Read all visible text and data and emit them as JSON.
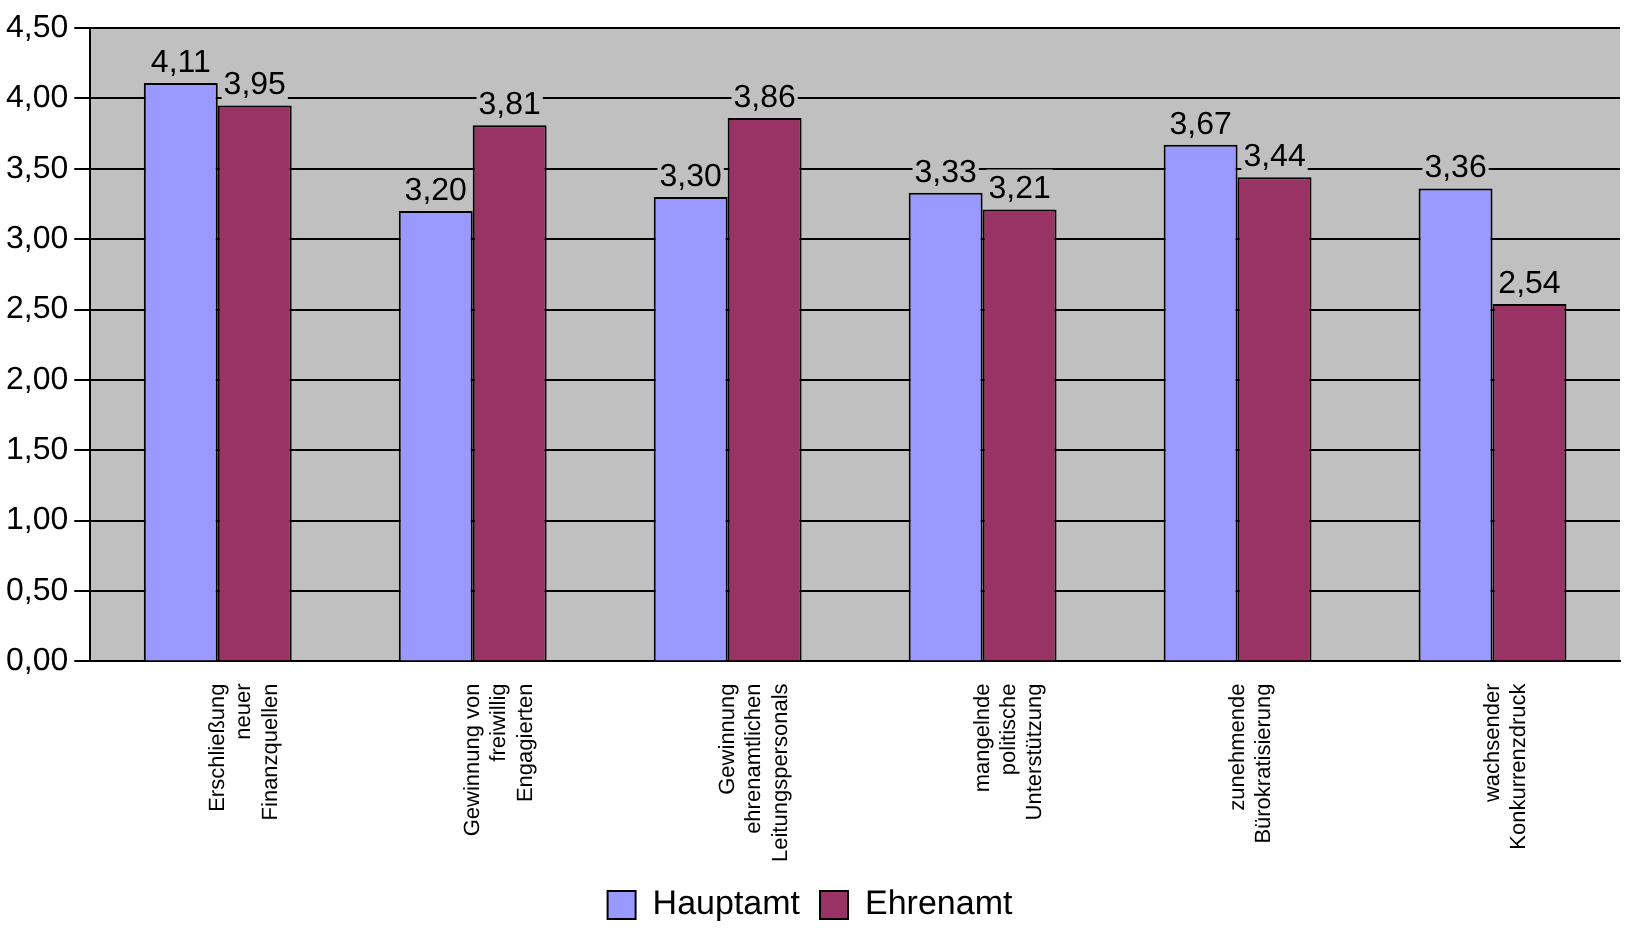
{
  "chart_data": {
    "type": "bar",
    "categories": [
      "Erschließung\nneuer\nFinanzquellen",
      "Gewinnung von\nfreiwillig\nEngagierten",
      "Gewinnung\nehrenamtlichen\nLeitungspersonals",
      "mangelnde\npolitische\nUnterstützung",
      "zunehmende\nBürokratisierung",
      "wachsender\nKonkurrenzdruck"
    ],
    "series": [
      {
        "name": "Hauptamt",
        "color": "#9999ff",
        "values": [
          4.11,
          3.2,
          3.3,
          3.33,
          3.67,
          3.36
        ],
        "value_labels": [
          "4,11",
          "3,20",
          "3,30",
          "3,33",
          "3,67",
          "3,36"
        ]
      },
      {
        "name": "Ehrenamt",
        "color": "#993366",
        "values": [
          3.95,
          3.81,
          3.86,
          3.21,
          3.44,
          2.54
        ],
        "value_labels": [
          "3,95",
          "3,81",
          "3,86",
          "3,21",
          "3,44",
          "2,54"
        ]
      }
    ],
    "ylim": [
      0,
      4.5
    ],
    "yticks": [
      {
        "value": 0,
        "label": "0,00"
      },
      {
        "value": 0.5,
        "label": "0,50"
      },
      {
        "value": 1,
        "label": "1,00"
      },
      {
        "value": 1.5,
        "label": "1,50"
      },
      {
        "value": 2,
        "label": "2,00"
      },
      {
        "value": 2.5,
        "label": "2,50"
      },
      {
        "value": 3,
        "label": "3,00"
      },
      {
        "value": 3.5,
        "label": "3,50"
      },
      {
        "value": 4,
        "label": "4,00"
      },
      {
        "value": 4.5,
        "label": "4,50"
      }
    ],
    "grid": "y",
    "legend": "bottom"
  }
}
